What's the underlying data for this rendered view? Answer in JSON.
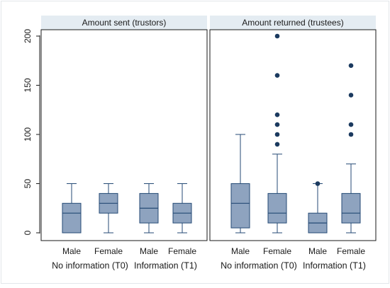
{
  "chart_data": {
    "type": "boxplot",
    "y_ticks": [
      0,
      50,
      100,
      150,
      200
    ],
    "ylim": [
      0,
      205
    ],
    "grid": false,
    "colors": {
      "box_fill": "#8ea3bf",
      "box_stroke": "#244a75",
      "outlier": "#1b3a5f",
      "strip_fill": "#e4ecf2",
      "panel_border": "#1a1a1a",
      "background": "#ffffff"
    },
    "panels": [
      {
        "title": "Amount sent (trustors)",
        "groups": [
          {
            "label": "No information (T0)",
            "categories": [
              "Male",
              "Female"
            ]
          },
          {
            "label": "Information (T1)",
            "categories": [
              "Male",
              "Female"
            ]
          }
        ],
        "boxes": [
          {
            "category": "Male",
            "group": "No information (T0)",
            "min": 0,
            "q1": 0,
            "median": 20,
            "q3": 30,
            "max": 50,
            "outliers": []
          },
          {
            "category": "Female",
            "group": "No information (T0)",
            "min": 0,
            "q1": 20,
            "median": 30,
            "q3": 40,
            "max": 50,
            "outliers": []
          },
          {
            "category": "Male",
            "group": "Information (T1)",
            "min": 0,
            "q1": 10,
            "median": 25,
            "q3": 40,
            "max": 50,
            "outliers": []
          },
          {
            "category": "Female",
            "group": "Information (T1)",
            "min": 0,
            "q1": 10,
            "median": 20,
            "q3": 30,
            "max": 50,
            "outliers": []
          }
        ]
      },
      {
        "title": "Amount returned (trustees)",
        "groups": [
          {
            "label": "No information (T0)",
            "categories": [
              "Male",
              "Female"
            ]
          },
          {
            "label": "Information (T1)",
            "categories": [
              "Male",
              "Female"
            ]
          }
        ],
        "boxes": [
          {
            "category": "Male",
            "group": "No information (T0)",
            "min": 0,
            "q1": 5,
            "median": 30,
            "q3": 50,
            "max": 100,
            "outliers": []
          },
          {
            "category": "Female",
            "group": "No information (T0)",
            "min": 0,
            "q1": 10,
            "median": 20,
            "q3": 40,
            "max": 80,
            "outliers": [
              90,
              100,
              110,
              120,
              160,
              200
            ]
          },
          {
            "category": "Male",
            "group": "Information (T1)",
            "min": 0,
            "q1": 0,
            "median": 10,
            "q3": 20,
            "max": 50,
            "outliers": [
              50
            ]
          },
          {
            "category": "Female",
            "group": "Information (T1)",
            "min": 0,
            "q1": 10,
            "median": 20,
            "q3": 40,
            "max": 70,
            "outliers": [
              100,
              110,
              140,
              170
            ]
          }
        ]
      }
    ]
  }
}
